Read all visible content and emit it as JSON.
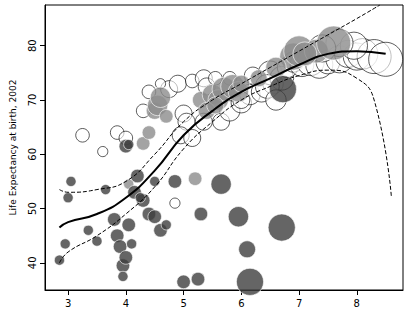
{
  "chart_data": {
    "type": "scatter",
    "y_label": "Life Expectancy at birth, 2002",
    "xlim": [
      2.6,
      8.8
    ],
    "ylim": [
      35,
      87.5
    ],
    "xticks": [
      3,
      4,
      5,
      6,
      7,
      8
    ],
    "yticks": [
      40,
      50,
      60,
      70,
      80
    ],
    "grid": false,
    "series": [
      {
        "type": "scatter",
        "color": "#000000",
        "marker": "open",
        "x": [
          3.25,
          3.6,
          3.85,
          4.0,
          4.3,
          4.75,
          4.9,
          5.15,
          5.35,
          5.4,
          5.0,
          5.05,
          4.95,
          5.15,
          5.35,
          5.65,
          5.8,
          6.0,
          6.15,
          6.35,
          6.55,
          6.5,
          6.7,
          6.8,
          6.9,
          7.05,
          7.2,
          7.35,
          7.5,
          7.7,
          7.85,
          8.0,
          8.1,
          8.3,
          7.95,
          7.7,
          5.55,
          5.8,
          6.2,
          6.0,
          4.85,
          4.4,
          4.6,
          6.45,
          6.6,
          7.4,
          8.5
        ],
        "values": [
          63.5,
          60.5,
          64,
          63,
          68,
          72,
          73,
          73.5,
          74,
          72.5,
          67.5,
          66,
          63.5,
          63,
          66,
          66,
          68,
          69.5,
          71,
          71.5,
          73,
          75,
          74,
          76,
          77,
          76.5,
          77,
          76.5,
          77,
          77.5,
          78.5,
          78,
          78.5,
          78,
          80,
          80.5,
          74,
          74,
          74.5,
          70,
          51,
          71.5,
          73,
          72.5,
          70,
          79.5,
          77.5
        ],
        "size": [
          4,
          3,
          4,
          4,
          4,
          5,
          5,
          4,
          5,
          5,
          5,
          5,
          5,
          5,
          5,
          5,
          6,
          6,
          6,
          6,
          6,
          7,
          7,
          6,
          6,
          7,
          8,
          8,
          7,
          8,
          8,
          8,
          9,
          10,
          8,
          8,
          4,
          4,
          5,
          5,
          3,
          4,
          3,
          7,
          6,
          8,
          10
        ]
      },
      {
        "type": "scatter",
        "color": "#8c8c8c",
        "marker": "filled",
        "x": [
          4.05,
          4.3,
          4.4,
          4.5,
          4.55,
          4.6,
          4.7,
          5.2,
          5.3,
          5.5,
          5.6,
          5.7,
          5.85,
          5.95,
          5.4,
          5.55,
          6.0,
          6.3,
          6.9,
          7.0,
          7.3,
          7.6,
          6.6,
          7.1
        ],
        "values": [
          54.5,
          62,
          64,
          68,
          69,
          70.5,
          67,
          55.5,
          70,
          71,
          70,
          72,
          72.5,
          71.5,
          68,
          69,
          73,
          74,
          78,
          79,
          79,
          80.5,
          76,
          78.5
        ],
        "size": [
          3,
          4,
          4,
          5,
          6,
          6,
          4,
          4,
          5,
          6,
          6,
          7,
          7,
          6,
          5,
          5,
          5,
          5,
          8,
          9,
          7,
          10,
          6,
          7
        ]
      },
      {
        "type": "scatter",
        "color": "#3f3f3f",
        "marker": "filled",
        "x": [
          2.85,
          2.95,
          3.05,
          3.0,
          3.35,
          3.5,
          3.65,
          3.8,
          3.85,
          3.9,
          3.95,
          4.0,
          3.95,
          4.05,
          4.1,
          4.15,
          4.2,
          4.3,
          4.4,
          4.5,
          4.6,
          4.7,
          4.85,
          4.5,
          4.25,
          4.0,
          5.0,
          5.25,
          5.3,
          5.65,
          5.95,
          6.15,
          6.7,
          6.1,
          6.72,
          4.05
        ],
        "values": [
          40.5,
          43.5,
          55,
          52,
          46,
          44,
          53.5,
          48,
          45,
          43,
          39.5,
          41,
          37.5,
          47,
          43.5,
          53,
          56,
          51.5,
          49,
          48.5,
          46,
          47,
          55,
          55,
          52,
          61.5,
          36.5,
          37,
          49,
          54.5,
          48.5,
          36.5,
          46.5,
          42.5,
          72,
          61.8
        ],
        "size": [
          3,
          3,
          3,
          3,
          3,
          3,
          3,
          4,
          4,
          4,
          4,
          4,
          3,
          4,
          3,
          4,
          4,
          4,
          4,
          4,
          4,
          3,
          4,
          3,
          3,
          4,
          4,
          4,
          4,
          6,
          6,
          8,
          8,
          5,
          8,
          3
        ]
      },
      {
        "type": "line",
        "color": "#000000",
        "line_style": "solid",
        "x": [
          2.85,
          3.0,
          3.5,
          4.0,
          4.5,
          5.0,
          5.5,
          6.0,
          6.5,
          7.0,
          7.5,
          8.0,
          8.5
        ],
        "values": [
          46.5,
          47.5,
          49,
          52,
          57,
          63.5,
          68,
          71.5,
          74,
          76.5,
          78.5,
          79,
          78.5
        ]
      },
      {
        "type": "line",
        "color": "#000000",
        "line_style": "dashed",
        "x": [
          2.85,
          3.0,
          3.5,
          4.0,
          4.5,
          5.0,
          5.5,
          6.0,
          6.5,
          7.0,
          7.5,
          8.0,
          8.4
        ],
        "values": [
          53.5,
          53,
          53.5,
          55,
          60,
          66,
          70,
          73,
          76,
          79,
          82,
          85,
          87.5
        ]
      },
      {
        "type": "line",
        "color": "#000000",
        "line_style": "dashed",
        "x": [
          2.85,
          3.0,
          3.5,
          4.0,
          4.5,
          5.0,
          5.5,
          6.0,
          6.5,
          7.0,
          7.5,
          8.0,
          8.3,
          8.6
        ],
        "values": [
          40,
          42,
          45,
          49,
          54,
          61,
          66,
          70,
          72.5,
          74.5,
          75.5,
          74,
          70,
          52
        ]
      }
    ]
  }
}
